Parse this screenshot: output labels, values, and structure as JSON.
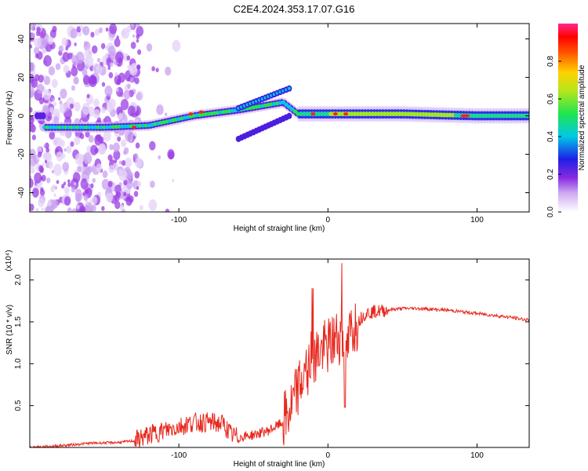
{
  "title": "C2E4.2024.353.17.07.G16",
  "chart_data": [
    {
      "type": "heatmap",
      "xlabel": "Height of straight line (km)",
      "ylabel": "Frequency (Hz)",
      "xlim": [
        -200,
        135
      ],
      "ylim": [
        -50,
        48
      ],
      "xticks": [
        -100,
        0,
        100
      ],
      "yticks": [
        -40,
        -20,
        0,
        20,
        40
      ],
      "colorbar": {
        "label": "Normalized spectral amplitude",
        "range": [
          0.0,
          1.0
        ],
        "ticks": [
          0.0,
          0.2,
          0.4,
          0.6,
          0.8
        ]
      },
      "ridge": {
        "description_points_x_km": [
          -190,
          -150,
          -120,
          -90,
          -60,
          -30,
          -20,
          0,
          50,
          100,
          135
        ],
        "description_points_freq_hz": [
          -6,
          -6,
          -5,
          0,
          3,
          7,
          1,
          1,
          1,
          0,
          0
        ]
      }
    },
    {
      "type": "line",
      "xlabel": "Height of straight line (km)",
      "ylabel": "SNR (10 * v/v)",
      "y_multiplier": "(x10⁴)",
      "xlim": [
        -200,
        135
      ],
      "ylim": [
        0,
        2.25
      ],
      "xticks": [
        -100,
        0,
        100
      ],
      "yticks": [
        0.5,
        1.0,
        1.5,
        2.0
      ],
      "series": [
        {
          "color": "#e8281e",
          "x": [
            -200,
            -180,
            -160,
            -140,
            -130,
            -120,
            -110,
            -100,
            -90,
            -80,
            -70,
            -65,
            -60,
            -50,
            -40,
            -30,
            -25,
            -20,
            -15,
            -10,
            -5,
            0,
            5,
            10,
            12,
            15,
            20,
            25,
            30,
            40,
            50,
            60,
            70,
            80,
            90,
            100,
            110,
            120,
            135
          ],
          "y": [
            0.0,
            0.02,
            0.05,
            0.06,
            0.08,
            0.15,
            0.2,
            0.25,
            0.3,
            0.3,
            0.28,
            0.15,
            0.12,
            0.15,
            0.2,
            0.3,
            0.45,
            0.7,
            0.9,
            1.1,
            1.15,
            1.2,
            1.3,
            1.35,
            1.0,
            1.4,
            1.5,
            1.6,
            1.62,
            1.64,
            1.66,
            1.66,
            1.65,
            1.64,
            1.62,
            1.6,
            1.58,
            1.56,
            1.52
          ]
        }
      ]
    }
  ]
}
